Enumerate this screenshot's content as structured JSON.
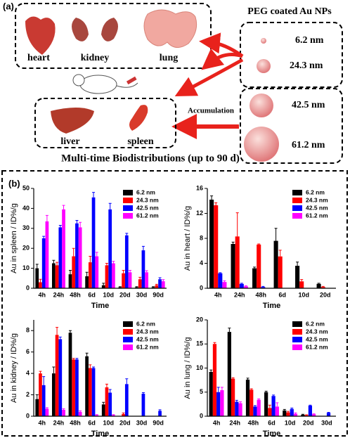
{
  "diagram": {
    "panel_a": "(a)",
    "panel_b": "(b)",
    "particles_title": "PEG coated Au NPs",
    "sizes": [
      "6.2 nm",
      "24.3 nm",
      "42.5 nm",
      "61.2 nm"
    ],
    "organs_top": [
      "heart",
      "kidney",
      "lung"
    ],
    "organs_bottom": [
      "liver",
      "spleen"
    ],
    "accumulation": "Accumulation",
    "caption": "Multi-time Biodistributions (up to 90 d)"
  },
  "chart_data": [
    {
      "type": "bar",
      "ylabel": "Au in spleen / ID%/g",
      "xlabel": "Time",
      "legend": "upper right",
      "categories": [
        "4h",
        "24h",
        "48h",
        "6d",
        "10d",
        "20d",
        "30d",
        "90d"
      ],
      "ylim": [
        0,
        50
      ],
      "yticks": [
        0,
        10,
        20,
        30,
        40,
        50
      ],
      "series": [
        {
          "name": "6.2 nm",
          "color": "#000000",
          "values": [
            10,
            12.5,
            7,
            6,
            1.5,
            0.5,
            0.5,
            0.5
          ],
          "errors": [
            2,
            1.5,
            2,
            2,
            1,
            0.3,
            0.3,
            0.3
          ]
        },
        {
          "name": "24.3 nm",
          "color": "#ff0000",
          "values": [
            3,
            11.5,
            16,
            13,
            11.5,
            7.5,
            4.5,
            1.5
          ],
          "errors": [
            1.5,
            1.5,
            4,
            3,
            1,
            1.5,
            1,
            0.5
          ]
        },
        {
          "name": "42.5 nm",
          "color": "#0000ff",
          "values": [
            25,
            30.5,
            32.5,
            45.5,
            39.5,
            26.5,
            19,
            4.5
          ],
          "errors": [
            1,
            1,
            1.5,
            2.5,
            3,
            1,
            2,
            0.8
          ]
        },
        {
          "name": "61.2 nm",
          "color": "#ff00ff",
          "values": [
            33.5,
            39.5,
            30.5,
            16,
            12.5,
            8,
            8,
            3.5
          ],
          "errors": [
            3,
            2,
            2.5,
            2,
            1,
            1,
            0.8,
            0.8
          ]
        }
      ]
    },
    {
      "type": "bar",
      "ylabel": "Au in heart / ID%/g",
      "xlabel": "Time",
      "legend": "upper right",
      "categories": [
        "4h",
        "24h",
        "48h",
        "6d",
        "10d",
        "20d"
      ],
      "ylim": [
        0,
        16
      ],
      "yticks": [
        0,
        4,
        8,
        12,
        16
      ],
      "series": [
        {
          "name": "6.2 nm",
          "color": "#000000",
          "values": [
            14.2,
            7.1,
            3.2,
            7.6,
            3.6,
            0.7
          ],
          "errors": [
            0.6,
            0.3,
            0.2,
            2,
            0.6,
            0.1
          ]
        },
        {
          "name": "24.3 nm",
          "color": "#ff0000",
          "values": [
            13.3,
            8.3,
            7,
            5.1,
            1.1,
            0.2
          ],
          "errors": [
            0.4,
            3.8,
            0.1,
            1,
            0.3,
            0.1
          ]
        },
        {
          "name": "42.5 nm",
          "color": "#0000ff",
          "values": [
            2.4,
            0.7,
            0.2,
            0,
            0,
            0
          ],
          "errors": [
            0.1,
            0.1,
            0.1,
            0,
            0,
            0
          ]
        },
        {
          "name": "61.2 nm",
          "color": "#ff00ff",
          "values": [
            1,
            0.3,
            0,
            0,
            0,
            0
          ],
          "errors": [
            0.2,
            0.1,
            0,
            0,
            0,
            0
          ]
        }
      ]
    },
    {
      "type": "bar",
      "ylabel": "Au in kidney / ID%/g",
      "xlabel": "Time",
      "legend": "upper right",
      "categories": [
        "4h",
        "24h",
        "48h",
        "6d",
        "10d",
        "20d",
        "30d",
        "90d"
      ],
      "ylim": [
        0,
        9
      ],
      "yticks": [
        0,
        2,
        4,
        6,
        8
      ],
      "series": [
        {
          "name": "6.2 nm",
          "color": "#000000",
          "values": [
            1.6,
            4,
            7.8,
            5.6,
            1.1,
            0,
            0,
            0
          ],
          "errors": [
            0.4,
            0.6,
            0.2,
            0.3,
            0.2,
            0,
            0,
            0
          ]
        },
        {
          "name": "24.3 nm",
          "color": "#ff0000",
          "values": [
            4,
            7.6,
            5.3,
            4.5,
            2.7,
            0.2,
            0,
            0
          ],
          "errors": [
            0.2,
            0.7,
            0.1,
            0.3,
            0.3,
            0.1,
            0,
            0
          ]
        },
        {
          "name": "42.5 nm",
          "color": "#0000ff",
          "values": [
            2.9,
            7.2,
            5.3,
            4.5,
            2.2,
            3,
            2.1,
            0.5
          ],
          "errors": [
            0.8,
            0.2,
            0.1,
            0.1,
            0.3,
            0.5,
            0.1,
            0.1
          ]
        },
        {
          "name": "61.2 nm",
          "color": "#ff00ff",
          "values": [
            0.7,
            0.6,
            0.4,
            0.1,
            0.1,
            0,
            0,
            0
          ],
          "errors": [
            0.1,
            0.1,
            0.1,
            0.05,
            0.05,
            0,
            0,
            0
          ]
        }
      ]
    },
    {
      "type": "bar",
      "ylabel": "Au in lung / ID%/g",
      "xlabel": "Time",
      "legend": "upper right",
      "categories": [
        "4h",
        "24h",
        "48h",
        "6d",
        "10d",
        "20d",
        "30d"
      ],
      "ylim": [
        0,
        20
      ],
      "yticks": [
        0,
        5,
        10,
        15,
        20
      ],
      "series": [
        {
          "name": "6.2 nm",
          "color": "#000000",
          "values": [
            9.2,
            17.5,
            7.6,
            5,
            1.2,
            0.3,
            0
          ],
          "errors": [
            0.4,
            0.8,
            0.3,
            0.2,
            0.2,
            0.1,
            0
          ]
        },
        {
          "name": "24.3 nm",
          "color": "#ff0000",
          "values": [
            15,
            7.8,
            5.5,
            1.7,
            0.8,
            0.2,
            0
          ],
          "errors": [
            0.3,
            0.2,
            0.2,
            0.6,
            0.2,
            0.1,
            0
          ]
        },
        {
          "name": "42.5 nm",
          "color": "#0000ff",
          "values": [
            5,
            3,
            2,
            4.2,
            1.5,
            2.2,
            0.7
          ],
          "errors": [
            1,
            0.3,
            0.2,
            0.2,
            0.2,
            0.1,
            0.1
          ]
        },
        {
          "name": "61.2 nm",
          "color": "#ff00ff",
          "values": [
            5.4,
            2.7,
            3.4,
            2,
            0.5,
            0.4,
            0
          ],
          "errors": [
            0.6,
            0.3,
            0.2,
            0.8,
            0.2,
            0.1,
            0
          ]
        }
      ]
    }
  ]
}
